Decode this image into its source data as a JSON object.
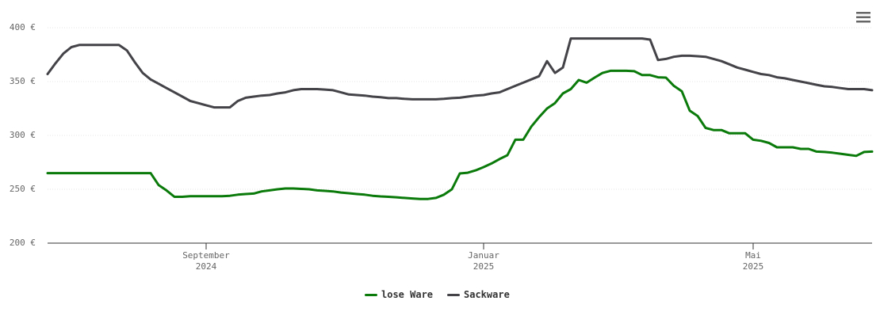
{
  "chart_data": {
    "type": "line",
    "categories": [
      null,
      null,
      null,
      null,
      null,
      null,
      null,
      null,
      null,
      null,
      null,
      null,
      null,
      null,
      null,
      null,
      null,
      null,
      null,
      null,
      "September\n2024",
      null,
      null,
      null,
      null,
      null,
      null,
      null,
      null,
      null,
      null,
      null,
      null,
      null,
      null,
      null,
      null,
      null,
      null,
      null,
      null,
      null,
      null,
      null,
      null,
      null,
      null,
      null,
      null,
      null,
      null,
      null,
      null,
      null,
      null,
      "Januar\n2025",
      null,
      null,
      null,
      null,
      null,
      null,
      null,
      null,
      null,
      null,
      null,
      null,
      null,
      null,
      null,
      null,
      null,
      null,
      null,
      null,
      null,
      null,
      null,
      null,
      null,
      null,
      null,
      null,
      null,
      null,
      null,
      null,
      null,
      "Mai\n2025",
      null,
      null,
      null,
      null,
      null,
      null,
      null,
      null,
      null,
      null,
      null,
      null,
      null,
      null,
      null
    ],
    "series": [
      {
        "name": "lose Ware",
        "color": "#0a7a0a",
        "values": [
          265,
          265,
          265,
          265,
          265,
          265,
          265,
          265,
          265,
          265,
          265,
          265,
          265,
          265,
          254,
          249,
          243,
          243,
          243.5,
          243.5,
          243.5,
          243.5,
          243.5,
          244,
          245,
          245.6,
          246,
          248,
          249,
          250,
          250.7,
          250.7,
          250.4,
          250,
          249,
          248.5,
          248,
          247,
          246.3,
          245.6,
          245,
          244,
          243.4,
          243,
          242.6,
          242,
          241.5,
          241,
          241,
          242,
          245,
          250,
          264.7,
          265.4,
          267.6,
          270.6,
          274,
          278,
          281.6,
          296,
          296,
          308,
          317,
          325,
          330,
          339,
          343,
          351.5,
          349,
          353.7,
          358,
          360,
          360,
          360,
          359.6,
          356,
          356,
          354,
          353.7,
          346,
          341,
          323,
          318,
          307,
          305,
          305,
          302,
          302,
          302,
          296,
          295,
          293,
          289,
          289,
          289,
          287.5,
          287.5,
          285,
          284.6,
          284,
          283,
          282,
          281,
          284.6,
          285
        ]
      },
      {
        "name": "Sackware",
        "color": "#434348",
        "values": [
          357,
          367,
          376,
          382,
          384,
          384,
          384,
          384,
          384,
          384,
          379,
          368,
          358,
          352,
          348,
          344,
          340,
          336,
          332,
          330,
          328,
          326,
          326,
          326,
          332,
          335,
          336,
          337,
          337.5,
          339,
          340,
          342,
          343,
          343,
          343,
          342.6,
          342,
          340,
          338,
          337.5,
          337,
          336,
          335.5,
          334.6,
          334.6,
          334,
          333.5,
          333.5,
          333.5,
          333.5,
          334,
          334.6,
          335,
          336,
          337,
          337.5,
          339,
          340,
          343,
          346,
          349,
          352,
          355,
          369,
          358,
          363,
          390,
          390,
          390,
          390,
          390,
          390,
          390,
          390,
          390,
          390,
          389,
          370,
          371,
          373,
          374,
          374,
          373.5,
          373,
          371,
          369,
          366,
          363,
          361,
          359,
          357,
          356,
          354,
          353,
          351.5,
          350,
          348.5,
          347,
          345.6,
          345,
          344,
          343,
          343,
          343,
          342
        ]
      }
    ],
    "ylim": [
      200,
      400
    ],
    "yticks": [
      {
        "value": 200,
        "label": "200 €"
      },
      {
        "value": 250,
        "label": "250 €"
      },
      {
        "value": 300,
        "label": "300 €"
      },
      {
        "value": 350,
        "label": "350 €"
      },
      {
        "value": 400,
        "label": "400 €"
      }
    ],
    "grid": true
  }
}
